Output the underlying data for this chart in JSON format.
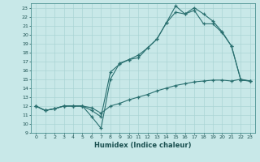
{
  "xlabel": "Humidex (Indice chaleur)",
  "bg_color": "#c8e8e8",
  "line_color": "#2a7070",
  "grid_color": "#b0d8d8",
  "xlim": [
    -0.5,
    23.5
  ],
  "ylim": [
    9,
    23.5
  ],
  "xticks": [
    0,
    1,
    2,
    3,
    4,
    5,
    6,
    7,
    8,
    9,
    10,
    11,
    12,
    13,
    14,
    15,
    16,
    17,
    18,
    19,
    20,
    21,
    22,
    23
  ],
  "yticks": [
    9,
    10,
    11,
    12,
    13,
    14,
    15,
    16,
    17,
    18,
    19,
    20,
    21,
    22,
    23
  ],
  "line1_x": [
    0,
    1,
    2,
    3,
    4,
    5,
    6,
    7,
    8,
    9,
    10,
    11,
    12,
    13,
    14,
    15,
    16,
    17,
    18,
    19,
    20,
    21,
    22,
    23
  ],
  "line1_y": [
    12,
    11.5,
    11.7,
    12,
    12,
    12,
    11.8,
    11.2,
    12.0,
    12.3,
    12.7,
    13.0,
    13.3,
    13.7,
    14.0,
    14.3,
    14.5,
    14.7,
    14.8,
    14.9,
    14.9,
    14.8,
    15.0,
    14.8
  ],
  "line2_x": [
    0,
    1,
    2,
    3,
    4,
    5,
    6,
    7,
    8,
    9,
    10,
    11,
    12,
    13,
    14,
    15,
    16,
    17,
    18,
    19,
    20,
    21,
    22,
    23
  ],
  "line2_y": [
    12,
    11.5,
    11.7,
    12,
    12,
    12,
    11.5,
    10.8,
    15.8,
    16.7,
    17.2,
    17.4,
    18.5,
    19.5,
    21.3,
    22.5,
    22.3,
    22.7,
    21.2,
    21.2,
    20.2,
    18.7,
    14.9,
    14.8
  ],
  "line3_x": [
    0,
    1,
    2,
    3,
    4,
    5,
    6,
    7,
    8,
    9,
    10,
    11,
    12,
    13,
    14,
    15,
    16,
    17,
    18,
    19,
    20,
    21,
    22,
    23
  ],
  "line3_y": [
    12,
    11.5,
    11.7,
    12,
    12,
    12,
    10.8,
    9.5,
    15.0,
    16.8,
    17.2,
    17.7,
    18.5,
    19.5,
    21.3,
    23.2,
    22.3,
    23.0,
    22.3,
    21.5,
    20.3,
    18.7,
    14.9,
    14.8
  ]
}
